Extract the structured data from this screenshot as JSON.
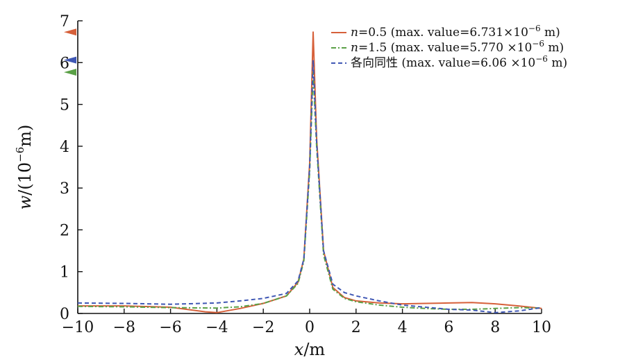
{
  "chart_data": {
    "type": "line",
    "xlabel": {
      "var": "x",
      "unit": "/m"
    },
    "ylabel": {
      "var": "w",
      "unit_prefix": "/(10",
      "unit_exp": "−6",
      "unit_suffix": "m)"
    },
    "xlim": [
      -10,
      10
    ],
    "ylim": [
      0,
      7
    ],
    "x_ticks": [
      -10,
      -8,
      -6,
      -4,
      -2,
      0,
      2,
      4,
      6,
      8,
      10
    ],
    "x_tick_labels": [
      "−10",
      "−8",
      "−6",
      "−4",
      "−2",
      "0",
      "2",
      "4",
      "6",
      "8",
      "10"
    ],
    "y_ticks": [
      0,
      1,
      2,
      3,
      4,
      5,
      6,
      7
    ],
    "y_tick_labels": [
      "0",
      "1",
      "2",
      "3",
      "4",
      "5",
      "6",
      "7"
    ],
    "grid": false,
    "legend_position": "top-right",
    "series": [
      {
        "var": "n",
        "name": "=0.5 (max. value=6.731×10",
        "exp": "−6",
        "unit": " m)",
        "color": "#d6603a",
        "style": "solid",
        "peak_marker": 6.731,
        "x": [
          -10,
          -8,
          -6,
          -4.5,
          -4,
          -3,
          -2,
          -1,
          -0.5,
          -0.25,
          0,
          0.15,
          0.3,
          0.6,
          1,
          1.5,
          2,
          3,
          4,
          5,
          6,
          7,
          8,
          9,
          10
        ],
        "y": [
          0.18,
          0.18,
          0.15,
          0.04,
          0.02,
          0.12,
          0.24,
          0.42,
          0.75,
          1.3,
          3.6,
          6.731,
          4.2,
          1.5,
          0.62,
          0.38,
          0.3,
          0.25,
          0.23,
          0.24,
          0.25,
          0.26,
          0.23,
          0.18,
          0.12
        ]
      },
      {
        "var": "n",
        "name": "=1.5 (max. value=5.770 ×10",
        "exp": "−6",
        "unit": " m)",
        "color": "#5aa046",
        "style": "dashdot",
        "peak_marker": 5.77,
        "x": [
          -10,
          -8,
          -6,
          -4,
          -3,
          -2,
          -1,
          -0.5,
          -0.25,
          0,
          0.15,
          0.3,
          0.6,
          1,
          1.5,
          2,
          3,
          4,
          5,
          6,
          7,
          8,
          9,
          10
        ],
        "y": [
          0.17,
          0.16,
          0.14,
          0.13,
          0.16,
          0.24,
          0.42,
          0.72,
          1.25,
          3.4,
          5.77,
          4.0,
          1.4,
          0.58,
          0.36,
          0.28,
          0.2,
          0.15,
          0.12,
          0.1,
          0.1,
          0.12,
          0.14,
          0.13
        ]
      },
      {
        "var": "",
        "name": "各向同性 (max. value=6.06 ×10",
        "exp": "−6",
        "unit": " m)",
        "color": "#3f57b4",
        "style": "dashed",
        "peak_marker": 6.06,
        "x": [
          -10,
          -8,
          -6,
          -4,
          -3,
          -2,
          -1,
          -0.5,
          -0.25,
          0,
          0.15,
          0.3,
          0.6,
          1,
          1.5,
          2,
          3,
          4,
          5,
          6,
          7,
          8,
          9,
          10
        ],
        "y": [
          0.25,
          0.24,
          0.22,
          0.25,
          0.3,
          0.36,
          0.48,
          0.78,
          1.3,
          3.5,
          6.06,
          4.1,
          1.5,
          0.7,
          0.5,
          0.42,
          0.3,
          0.2,
          0.15,
          0.1,
          0.08,
          0.02,
          0.06,
          0.14
        ]
      }
    ]
  }
}
